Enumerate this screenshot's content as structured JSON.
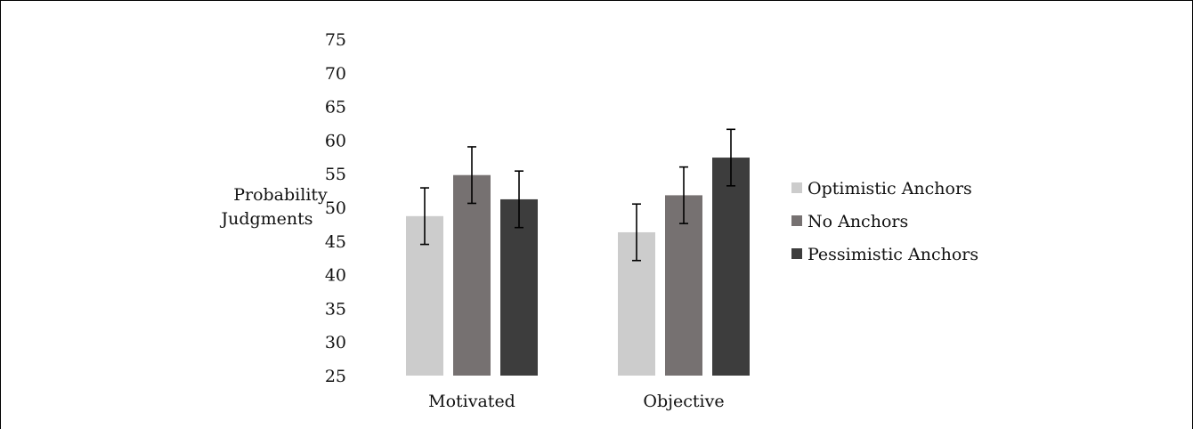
{
  "chart_data": {
    "type": "bar",
    "categories": [
      "Motivated",
      "Objective"
    ],
    "ylabel": [
      "Probability",
      "Judgments"
    ],
    "ylim": [
      25,
      75
    ],
    "yticks": [
      75,
      70,
      65,
      60,
      55,
      50,
      45,
      40,
      35,
      30,
      25
    ],
    "grid": false,
    "legend_position": "right",
    "series": [
      {
        "name": "Optimistic Anchors",
        "color": "#cccccc",
        "values": [
          48.7,
          46.3
        ],
        "error": [
          4.2,
          4.2
        ]
      },
      {
        "name": "No Anchors",
        "color": "#767171",
        "values": [
          54.8,
          51.8
        ],
        "error": [
          4.2,
          4.2
        ]
      },
      {
        "name": "Pessimistic Anchors",
        "color": "#3d3d3d",
        "values": [
          51.2,
          57.4
        ],
        "error": [
          4.2,
          4.2
        ]
      }
    ]
  }
}
